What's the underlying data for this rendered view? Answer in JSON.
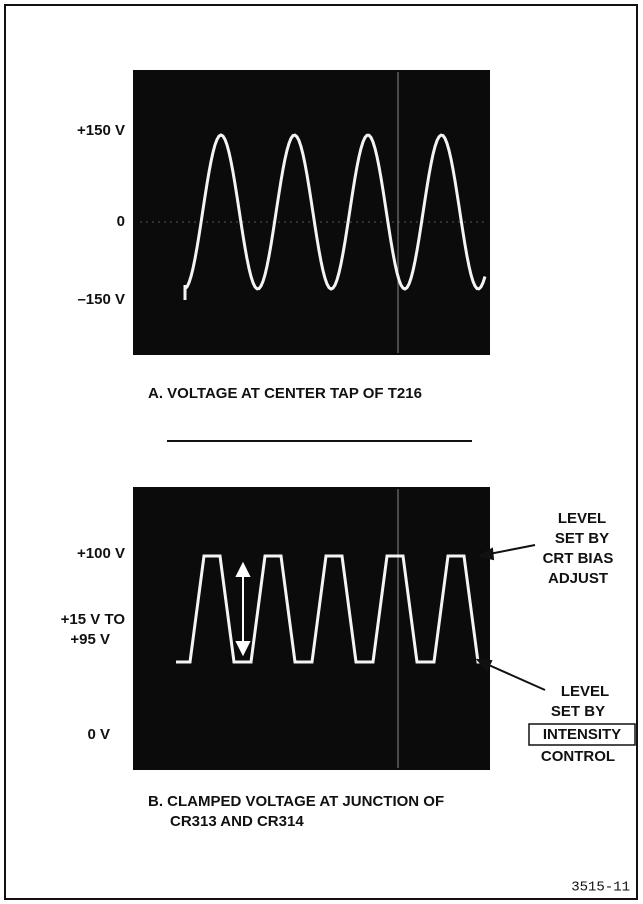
{
  "panel_a": {
    "scale_labels": [
      "+150 V",
      "0",
      "–150 V"
    ],
    "caption": "A. VOLTAGE AT CENTER TAP OF T216"
  },
  "panel_b": {
    "scale_labels": [
      "+100 V",
      "+15 V TO",
      "+95 V",
      "0 V"
    ],
    "upper_note": [
      "LEVEL",
      "SET BY",
      "CRT BIAS",
      "ADJUST"
    ],
    "lower_note": [
      "LEVEL",
      "SET BY",
      "INTENSITY",
      "CONTROL"
    ],
    "caption": [
      "B. CLAMPED VOLTAGE AT JUNCTION OF",
      "CR313 AND CR314"
    ]
  },
  "figure_number": "3515-11"
}
